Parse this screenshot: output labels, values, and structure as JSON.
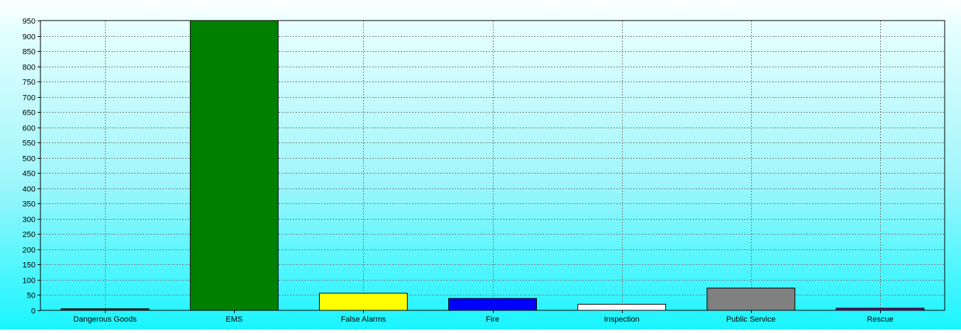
{
  "chart_data": {
    "type": "bar",
    "title": "",
    "xlabel": "",
    "ylabel": "",
    "categories": [
      "Dangerous Goods",
      "EMS",
      "False Alarms",
      "Fire",
      "Inspection",
      "Public Service",
      "Rescue"
    ],
    "values": [
      5,
      953,
      56,
      39,
      20,
      73,
      7
    ],
    "colors": [
      "#800000",
      "#008000",
      "#ffff00",
      "#0000ff",
      "#ffffff",
      "#808080",
      "#800080"
    ],
    "ylim": [
      0,
      950
    ],
    "yticks": [
      0,
      50,
      100,
      150,
      200,
      250,
      300,
      350,
      400,
      450,
      500,
      550,
      600,
      650,
      700,
      750,
      800,
      850,
      900,
      950
    ],
    "grid": true,
    "legend": "none"
  }
}
